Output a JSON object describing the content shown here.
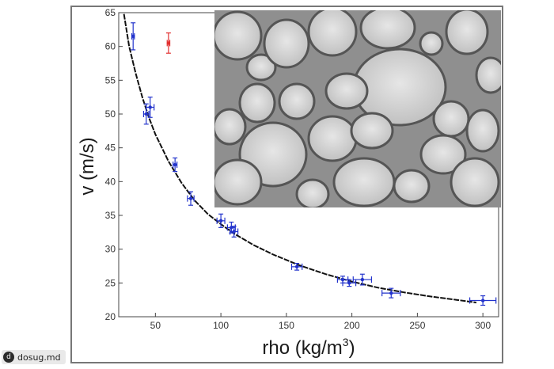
{
  "chart_data": {
    "type": "scatter",
    "title": "",
    "xlabel": "rho (kg/m",
    "xlabel_sup": "3",
    "xlabel_end": ")",
    "ylabel": "v (m/s)",
    "xlim": [
      22,
      312
    ],
    "ylim": [
      20,
      65
    ],
    "xticks": [
      "50",
      "100",
      "150",
      "200",
      "250",
      "300"
    ],
    "yticks": [
      "20",
      "25",
      "30",
      "35",
      "40",
      "45",
      "50",
      "55",
      "60",
      "65"
    ],
    "grid": false,
    "colors": {
      "measured": "#2233cc",
      "outlier": "#e23030",
      "fit": "#111111"
    },
    "series": [
      {
        "role": "measured",
        "points": [
          {
            "x": 33,
            "y": 61.5,
            "xerr": 1,
            "yerr": 2.0
          },
          {
            "x": 43,
            "y": 50.0,
            "xerr": 2,
            "yerr": 1.5
          },
          {
            "x": 46,
            "y": 51.0,
            "xerr": 3,
            "yerr": 1.5
          },
          {
            "x": 65,
            "y": 42.5,
            "xerr": 1.5,
            "yerr": 1.0
          },
          {
            "x": 77,
            "y": 37.5,
            "xerr": 2.5,
            "yerr": 1.0
          },
          {
            "x": 100,
            "y": 34.2,
            "xerr": 3,
            "yerr": 1.0
          },
          {
            "x": 108,
            "y": 33.2,
            "xerr": 3,
            "yerr": 0.8
          },
          {
            "x": 110,
            "y": 32.6,
            "xerr": 3,
            "yerr": 0.8
          },
          {
            "x": 158,
            "y": 27.4,
            "xerr": 4,
            "yerr": 0.5
          },
          {
            "x": 193,
            "y": 25.5,
            "xerr": 4,
            "yerr": 0.5
          },
          {
            "x": 198,
            "y": 25.0,
            "xerr": 5,
            "yerr": 0.5
          },
          {
            "x": 208,
            "y": 25.5,
            "xerr": 7,
            "yerr": 0.8
          },
          {
            "x": 230,
            "y": 23.5,
            "xerr": 7,
            "yerr": 0.7
          },
          {
            "x": 300,
            "y": 22.4,
            "xerr": 10,
            "yerr": 0.7
          }
        ]
      },
      {
        "role": "outlier",
        "points": [
          {
            "x": 60,
            "y": 60.5,
            "xerr": 1,
            "yerr": 1.5
          }
        ]
      }
    ],
    "fit": {
      "x": [
        26,
        30,
        35,
        40,
        45,
        50,
        60,
        70,
        80,
        90,
        100,
        110,
        125,
        140,
        160,
        180,
        200,
        220,
        240,
        260,
        280,
        295
      ],
      "y": [
        64.8,
        60.0,
        56.0,
        52.5,
        49.5,
        47.0,
        43.0,
        39.8,
        37.2,
        35.2,
        33.7,
        32.3,
        30.6,
        29.2,
        27.6,
        26.3,
        25.2,
        24.3,
        23.6,
        23.0,
        22.5,
        22.1
      ]
    },
    "inset": "foam bubble micrograph"
  },
  "watermark": {
    "icon": "d",
    "text": "dosug.md"
  }
}
